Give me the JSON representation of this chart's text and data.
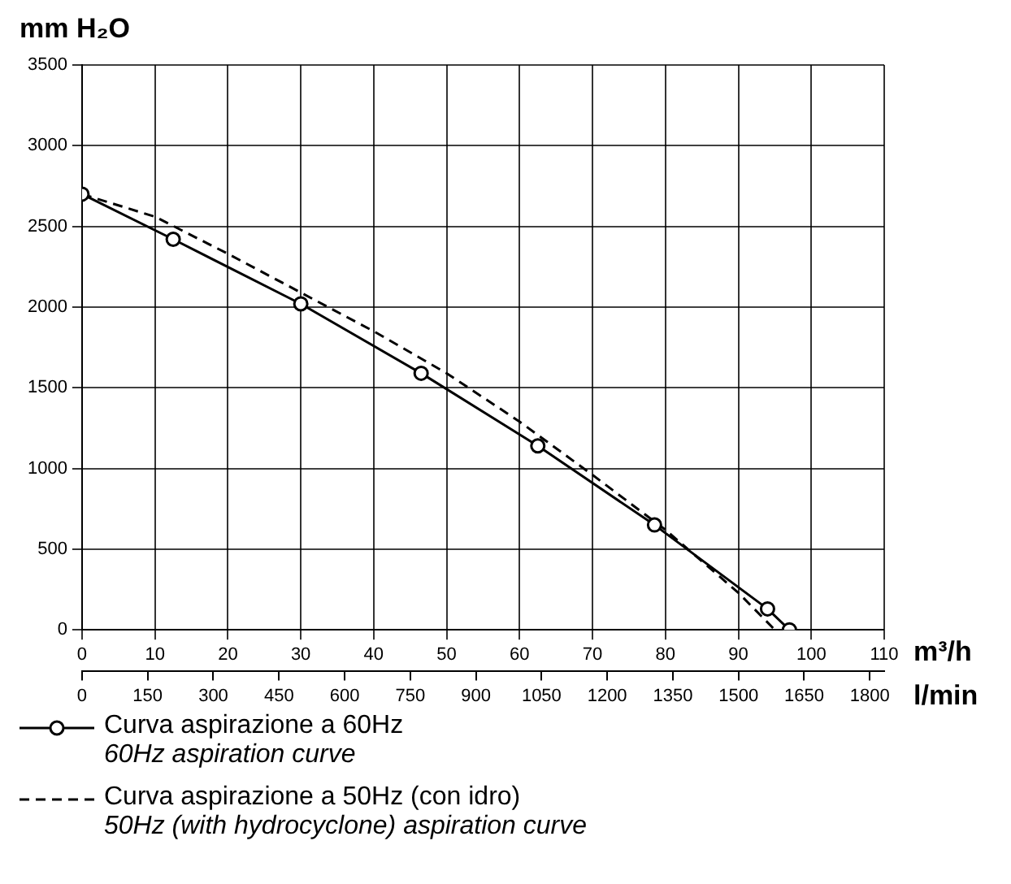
{
  "chart_data": {
    "type": "line",
    "ylabel": "mm H₂O",
    "xlabel": "m³/h",
    "x2label": "l/min",
    "xlim": [
      0,
      110
    ],
    "xticks": [
      0,
      10,
      20,
      30,
      40,
      50,
      60,
      70,
      80,
      90,
      100,
      110
    ],
    "x2lim": [
      0,
      1833
    ],
    "x2ticks": [
      0,
      150,
      300,
      450,
      600,
      750,
      900,
      1050,
      1200,
      1350,
      1500,
      1650,
      1800
    ],
    "ylim": [
      0,
      3500
    ],
    "yticks": [
      0,
      500,
      1000,
      1500,
      2000,
      2500,
      3000,
      3500
    ],
    "grid": true,
    "legend": "bottom",
    "series": [
      {
        "name": "Curva aspirazione a 60Hz\n60Hz aspiration curve",
        "color": "#000000",
        "marker": "circle",
        "line_style": "solid",
        "x": [
          0,
          12.5,
          30,
          46.5,
          62.5,
          78.5,
          94,
          97
        ],
        "values": [
          2700,
          2420,
          2020,
          1590,
          1140,
          650,
          130,
          0
        ]
      },
      {
        "name": "Curva aspirazione a 50Hz (con idro)\n50Hz (with hydrocyclone) aspiration curve",
        "color": "#000000",
        "marker": "none",
        "line_style": "dashed",
        "x": [
          0,
          10,
          20,
          30,
          40,
          50,
          60,
          70,
          80,
          90,
          95
        ],
        "values": [
          2700,
          2560,
          2330,
          2090,
          1850,
          1590,
          1290,
          960,
          620,
          230,
          0
        ]
      }
    ]
  }
}
